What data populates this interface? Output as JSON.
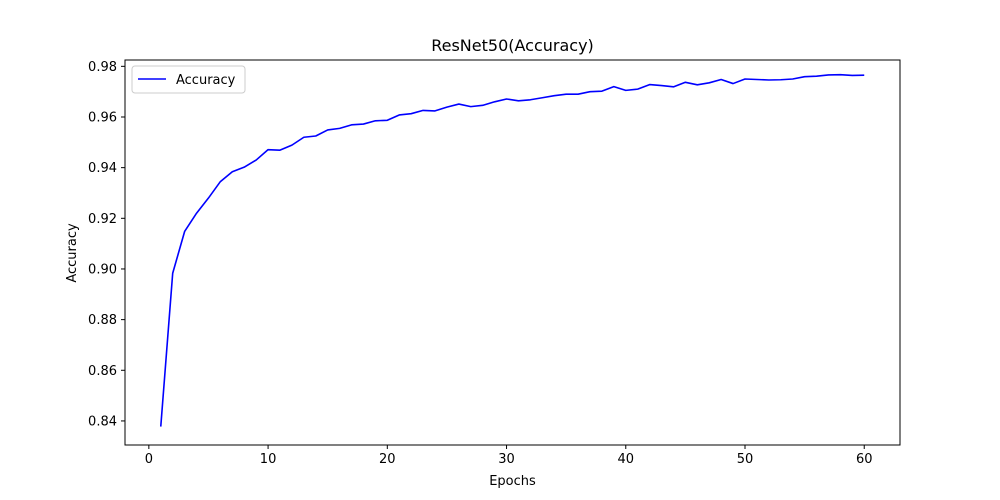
{
  "chart_data": {
    "type": "line",
    "title": "ResNet50(Accuracy)",
    "xlabel": "Epochs",
    "ylabel": "Accuracy",
    "xlim": [
      -2,
      63
    ],
    "ylim": [
      0.8305,
      0.9825
    ],
    "xticks": [
      0,
      10,
      20,
      30,
      40,
      50,
      60
    ],
    "yticks": [
      0.84,
      0.86,
      0.88,
      0.9,
      0.92,
      0.94,
      0.96,
      0.98
    ],
    "ytick_labels": [
      "0.84",
      "0.86",
      "0.88",
      "0.90",
      "0.92",
      "0.94",
      "0.96",
      "0.98"
    ],
    "grid": false,
    "legend_position": "upper-left",
    "series": [
      {
        "name": "Accuracy",
        "color": "#0000ff",
        "x": [
          1,
          2,
          3,
          4,
          5,
          6,
          7,
          8,
          9,
          10,
          11,
          12,
          13,
          14,
          15,
          16,
          17,
          18,
          19,
          20,
          21,
          22,
          23,
          24,
          25,
          26,
          27,
          28,
          29,
          30,
          31,
          32,
          33,
          34,
          35,
          36,
          37,
          38,
          39,
          40,
          41,
          42,
          43,
          44,
          45,
          46,
          47,
          48,
          49,
          50,
          51,
          52,
          53,
          54,
          55,
          56,
          57,
          58,
          59,
          60
        ],
        "y": [
          0.8378,
          0.8983,
          0.9148,
          0.922,
          0.928,
          0.9345,
          0.9384,
          0.9402,
          0.943,
          0.9471,
          0.9469,
          0.9489,
          0.952,
          0.9525,
          0.9549,
          0.9555,
          0.9569,
          0.9572,
          0.9585,
          0.9587,
          0.9608,
          0.9613,
          0.9626,
          0.9624,
          0.9639,
          0.9651,
          0.9641,
          0.9646,
          0.966,
          0.9671,
          0.9664,
          0.9668,
          0.9676,
          0.9684,
          0.969,
          0.969,
          0.97,
          0.9702,
          0.972,
          0.9705,
          0.971,
          0.9728,
          0.9724,
          0.9719,
          0.9737,
          0.9727,
          0.9735,
          0.9748,
          0.9732,
          0.975,
          0.9748,
          0.9746,
          0.9747,
          0.975,
          0.9759,
          0.9761,
          0.9766,
          0.9767,
          0.9764,
          0.9765
        ]
      }
    ]
  }
}
